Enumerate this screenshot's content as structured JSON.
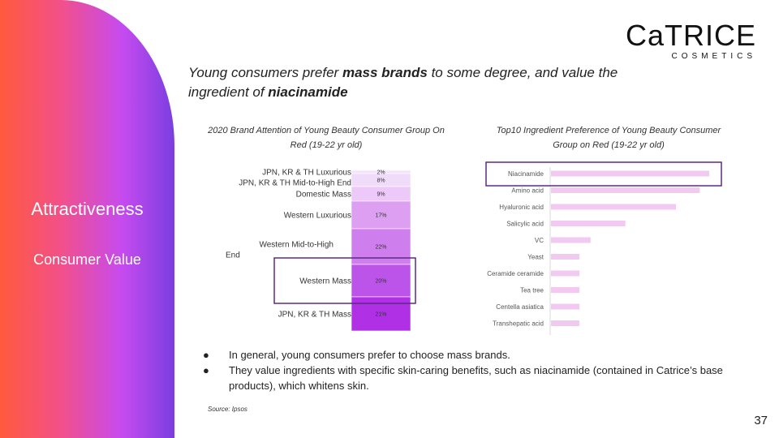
{
  "sidebar": {
    "title": "Attractiveness",
    "subtitle": "Consumer Value"
  },
  "logo": {
    "main": "CaTRICE",
    "sub": "COSMETICS"
  },
  "headline": {
    "part1": "Young consumers prefer ",
    "bold1": "mass brands",
    "part2": " to some degree, and value the ingredient of ",
    "bold2": "niacinamide"
  },
  "chart_data": [
    {
      "type": "bar",
      "title": "2020 Brand Attention of Young Beauty Consumer Group On Red (19-22 yr old)",
      "stacked": true,
      "categories": [
        "JPN, KR & TH Luxurious",
        "JPN, KR & TH Mid-to-High End",
        "Domestic Mass",
        "Western Luxurious",
        "Western Mid-to-High End",
        "Western Mass",
        "JPN, KR & TH Mass"
      ],
      "values": [
        2,
        8,
        9,
        17,
        22,
        20,
        21
      ],
      "labels": [
        "2%",
        "8%",
        "9%",
        "17%",
        "22%",
        "20%",
        "21%"
      ],
      "colors": [
        "#f3e3fb",
        "#f0dcfa",
        "#ecc9f8",
        "#dc9ff2",
        "#cf7eee",
        "#bd54ea",
        "#b030e6"
      ],
      "highlight": "Western Mass"
    },
    {
      "type": "bar",
      "orientation": "horizontal",
      "title": "Top10 Ingredient Preference of Young Beauty Consumer Group on Red (19-22 yr old)",
      "categories": [
        "Niacinamide",
        "Amino acid",
        "Hyaluronic acid",
        "Salicylic acid",
        "VC",
        "Yeast",
        "Ceramide ceramide",
        "Tea tree",
        "Centella asiatica",
        "Transhepatic acid"
      ],
      "values": [
        100,
        94,
        79,
        47,
        25,
        18,
        18,
        18,
        18,
        18
      ],
      "color": "#f2c9f1",
      "highlight": "Niacinamide"
    }
  ],
  "bullets": [
    "In general, young consumers prefer to choose mass brands.",
    "They value ingredients with specific skin-caring benefits, such as niacinamide (contained in Catrice’s base products), which whitens skin."
  ],
  "source": "Source: Ipsos",
  "page_number": "37"
}
